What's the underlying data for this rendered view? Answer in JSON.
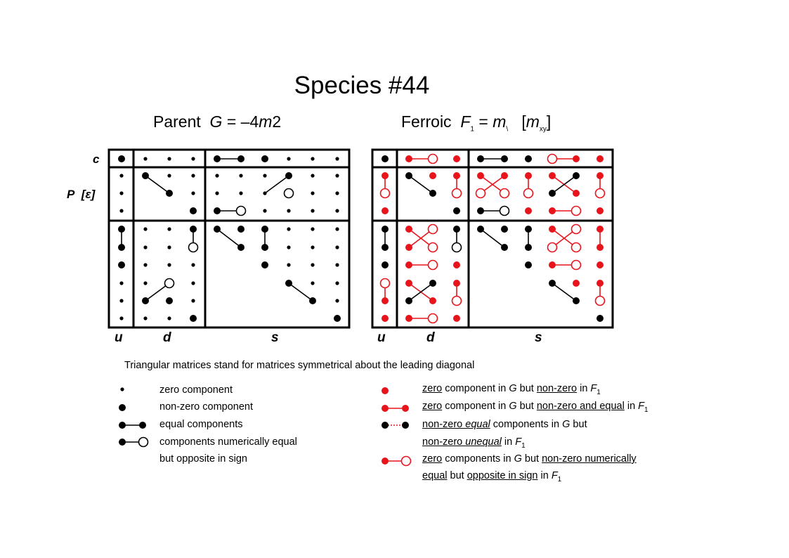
{
  "title": "Species #44",
  "parent": {
    "prefix": "Parent",
    "sym": "G",
    "eq": " = –4",
    "m": "m",
    "rest": "2"
  },
  "ferroic": {
    "prefix": "Ferroic",
    "sym": "F",
    "sub": "1",
    "eq": " = ",
    "m": "m",
    "sub2": "\\",
    "bracket_open": "[",
    "bm": "m",
    "bsub": "xy",
    "bracket_close": "]"
  },
  "row_labels": {
    "c": "c",
    "p": "P",
    "eps": "[ε]"
  },
  "col_labels": {
    "u": "u",
    "d": "d",
    "s": "s"
  },
  "note": "Triangular matrices stand for matrices symmetrical about the leading diagonal",
  "legend_left": [
    {
      "icon": "small-dot",
      "text": "zero component"
    },
    {
      "icon": "large-dot",
      "text": "non-zero component"
    },
    {
      "icon": "black-pair",
      "text": "equal components"
    },
    {
      "icon": "black-open-pair",
      "text": "components numerically equal"
    },
    {
      "icon": "",
      "text": "but opposite in sign"
    }
  ],
  "legend_right": {
    "l1": {
      "a": "zero",
      "b": " component in ",
      "c": "G",
      "d": " but ",
      "e": "non-zero",
      "f": " in ",
      "g": "F",
      "h": "1"
    },
    "l2": {
      "a": "zero",
      "b": " component in ",
      "c": "G",
      "d": " but ",
      "e": "non-zero and equal",
      "f": " in ",
      "g": "F",
      "h": "1"
    },
    "l3": {
      "a": "non-zero ",
      "b": "equal",
      "c": "  components in ",
      "d": "G",
      "e": "  but"
    },
    "l4": {
      "a": "non-zero ",
      "b": "unequal",
      "c": "  in ",
      "d": "F",
      "e": "1"
    },
    "l5": {
      "a": "zero",
      "b": " components in ",
      "c": "G",
      "d": " but ",
      "e": "non-zero numerically "
    },
    "l6": {
      "a": "equal",
      "b": " but ",
      "c": "opposite in sign",
      "d": " in ",
      "e": "F",
      "f": "1"
    }
  },
  "colors": {
    "black": "#000000",
    "red": "#e8141c"
  }
}
